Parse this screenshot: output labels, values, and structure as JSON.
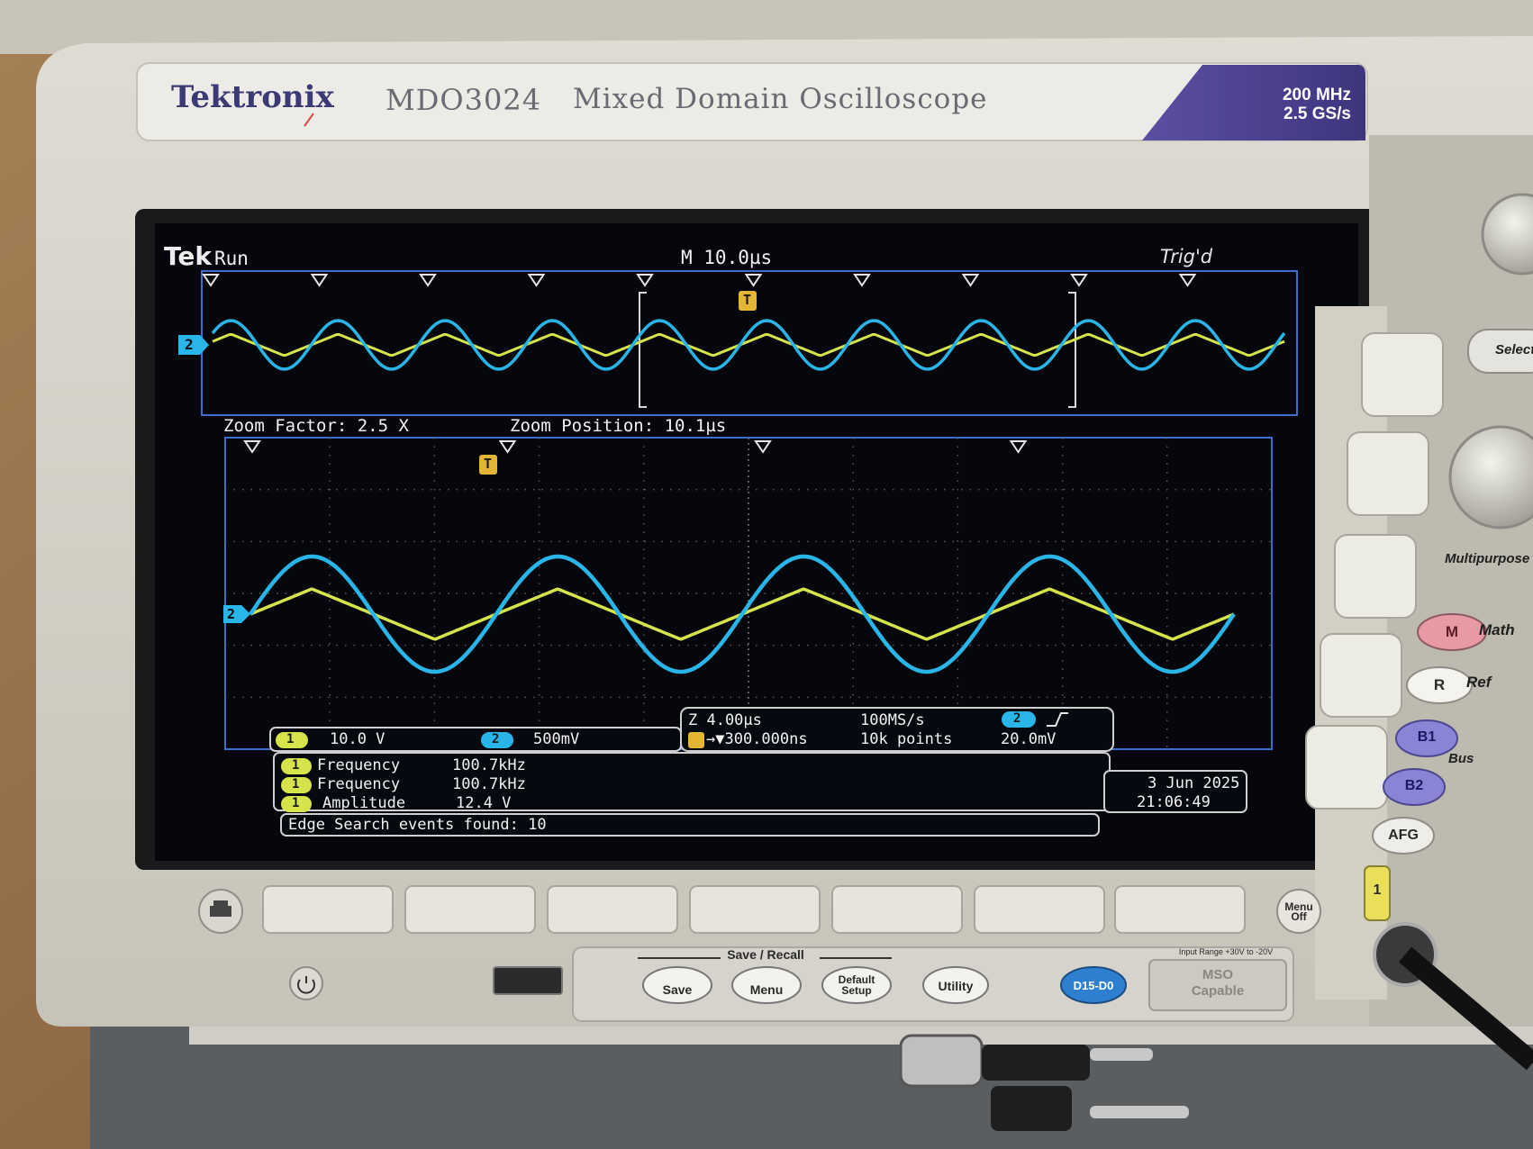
{
  "brand": {
    "name": "Tektronix",
    "model": "MDO3024",
    "description": "Mixed Domain Oscilloscope",
    "spec_bandwidth": "200 MHz",
    "spec_sample_rate": "2.5 GS/s"
  },
  "screen": {
    "status_brand": "Tek",
    "status_run": "Run",
    "timebase": "M 10.0µs",
    "trigger_status": "Trig'd",
    "zoom_factor": "Zoom Factor: 2.5 X",
    "zoom_position": "Zoom Position: 10.1µs",
    "trigger_marker": "T",
    "channel2_marker": "2",
    "channels": [
      {
        "id": "1",
        "scale": "10.0 V",
        "color": "#d7e34a"
      },
      {
        "id": "2",
        "scale": "500mV",
        "color": "#2ab5e8"
      }
    ],
    "zoom_readout": {
      "zoom_scale": "Z 4.00µs",
      "trigger_position": "→▼300.000ns",
      "sample_rate": "100MS/s",
      "record_length": "10k points",
      "trigger_source": "2",
      "trigger_level": "20.0mV"
    },
    "measurements": [
      {
        "channel": "1",
        "name": "Frequency",
        "value": "100.7kHz"
      },
      {
        "channel": "1",
        "name": "Frequency",
        "value": "100.7kHz"
      },
      {
        "channel": "1",
        "name": "Amplitude",
        "value": "12.4 V"
      }
    ],
    "date": "3 Jun  2025",
    "time": "21:06:49",
    "search_status": "Edge Search events found: 10"
  },
  "front_panel": {
    "save_recall_label": "Save / Recall",
    "buttons": {
      "save": "Save",
      "menu": "Menu",
      "default_setup_line1": "Default",
      "default_setup_line2": "Setup",
      "utility": "Utility",
      "digital": "D15-D0",
      "menu_off_line1": "Menu",
      "menu_off_line2": "Off"
    },
    "mso_capable_line1": "MSO",
    "mso_capable_line2": "Capable",
    "input_range": "Input Range +30V to -20V",
    "side_buttons": {
      "math_key": "M",
      "math_label": "Math",
      "ref_key": "R",
      "ref_label": "Ref",
      "b1": "B1",
      "b2": "B2",
      "bus_label": "Bus",
      "afg": "AFG",
      "multipurpose": "Multipurpose",
      "select": "Select",
      "ch1": "1"
    }
  },
  "waveforms": {
    "ch1_shape": "triangle",
    "ch2_shape": "sine",
    "ch1_color": "#d7e34a",
    "ch2_color": "#2ab5e8",
    "cycles_overview": 10,
    "cycles_zoom": 4
  }
}
